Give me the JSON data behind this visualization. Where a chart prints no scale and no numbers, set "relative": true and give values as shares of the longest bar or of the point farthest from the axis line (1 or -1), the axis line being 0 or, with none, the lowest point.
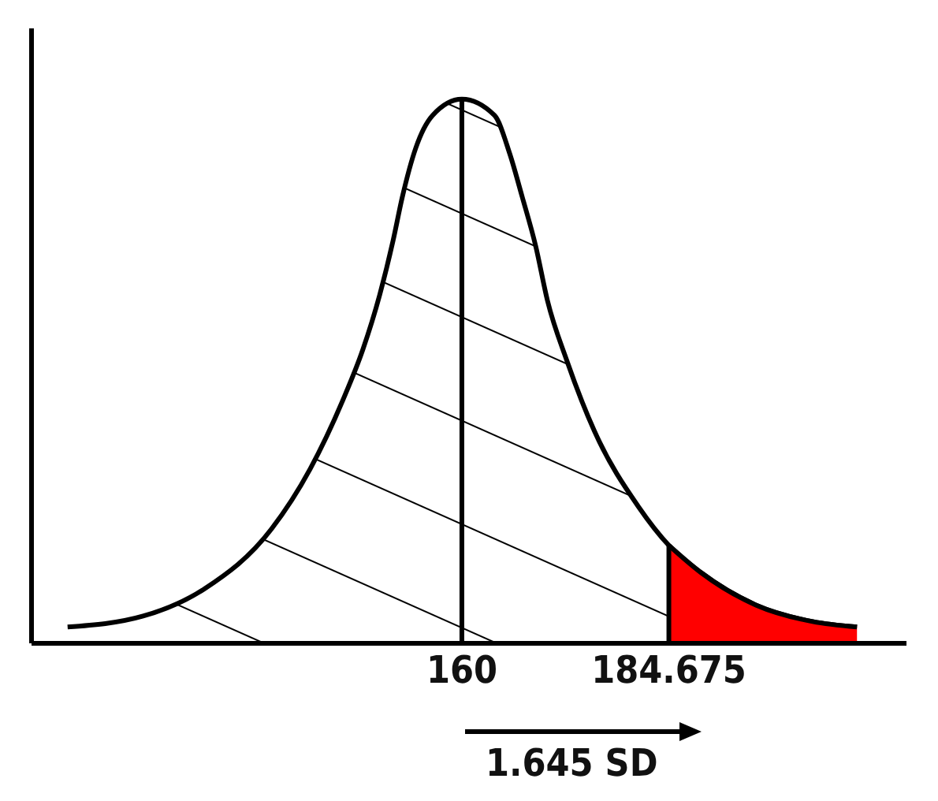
{
  "chart_data": {
    "type": "area",
    "relative": true,
    "xlim": [
      108.7,
      213
    ],
    "xticks": [
      160,
      184.675
    ],
    "tick_labels": "x",
    "grid": false,
    "legend": false,
    "series": [
      {
        "color": "#000000",
        "x": [
          113.0,
          122.0,
          129.3,
          137.3,
          141.9,
          145.9,
          148.2,
          150.2,
          151.8,
          152.9,
          154.5,
          156.5,
          160,
          163.9,
          165.7,
          167.2,
          168.8,
          170.2,
          172.5,
          175.8,
          181.1,
          184.675,
          188.5,
          195.1,
          201.8,
          207.1
        ],
        "values": [
          0.03,
          0.05,
          0.1,
          0.21,
          0.32,
          0.45,
          0.54,
          0.64,
          0.74,
          0.82,
          0.91,
          0.97,
          1.0,
          0.97,
          0.9,
          0.82,
          0.73,
          0.63,
          0.52,
          0.39,
          0.25,
          0.18,
          0.13,
          0.07,
          0.04,
          0.03
        ]
      },
      {
        "color": "#ff0000",
        "x": [
          184.675,
          188.5,
          195.1,
          201.8,
          207.1
        ],
        "values": [
          0.18,
          0.13,
          0.07,
          0.04,
          0.03
        ]
      }
    ],
    "ref_lines": [
      {
        "axis": "x",
        "value": 160,
        "color": "#000000"
      },
      {
        "axis": "x",
        "value": 184.675,
        "color": "#000000"
      }
    ],
    "annotations": [
      "1.645 SD"
    ]
  }
}
